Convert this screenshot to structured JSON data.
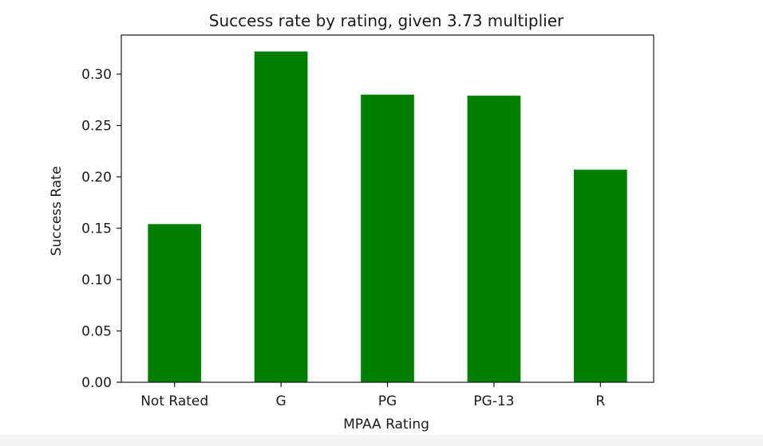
{
  "chart_data": {
    "type": "bar",
    "title": "Success rate by rating, given 3.73 multiplier",
    "xlabel": "MPAA Rating",
    "ylabel": "Success Rate",
    "categories": [
      "Not Rated",
      "G",
      "PG",
      "PG-13",
      "R"
    ],
    "values": [
      0.154,
      0.322,
      0.28,
      0.279,
      0.207
    ],
    "ylim": [
      0,
      0.338
    ],
    "yticks": [
      "0.00",
      "0.05",
      "0.10",
      "0.15",
      "0.20",
      "0.25",
      "0.30"
    ],
    "grid": false,
    "colors": {
      "bar": "#008000",
      "axis": "#1a1a1a"
    }
  }
}
